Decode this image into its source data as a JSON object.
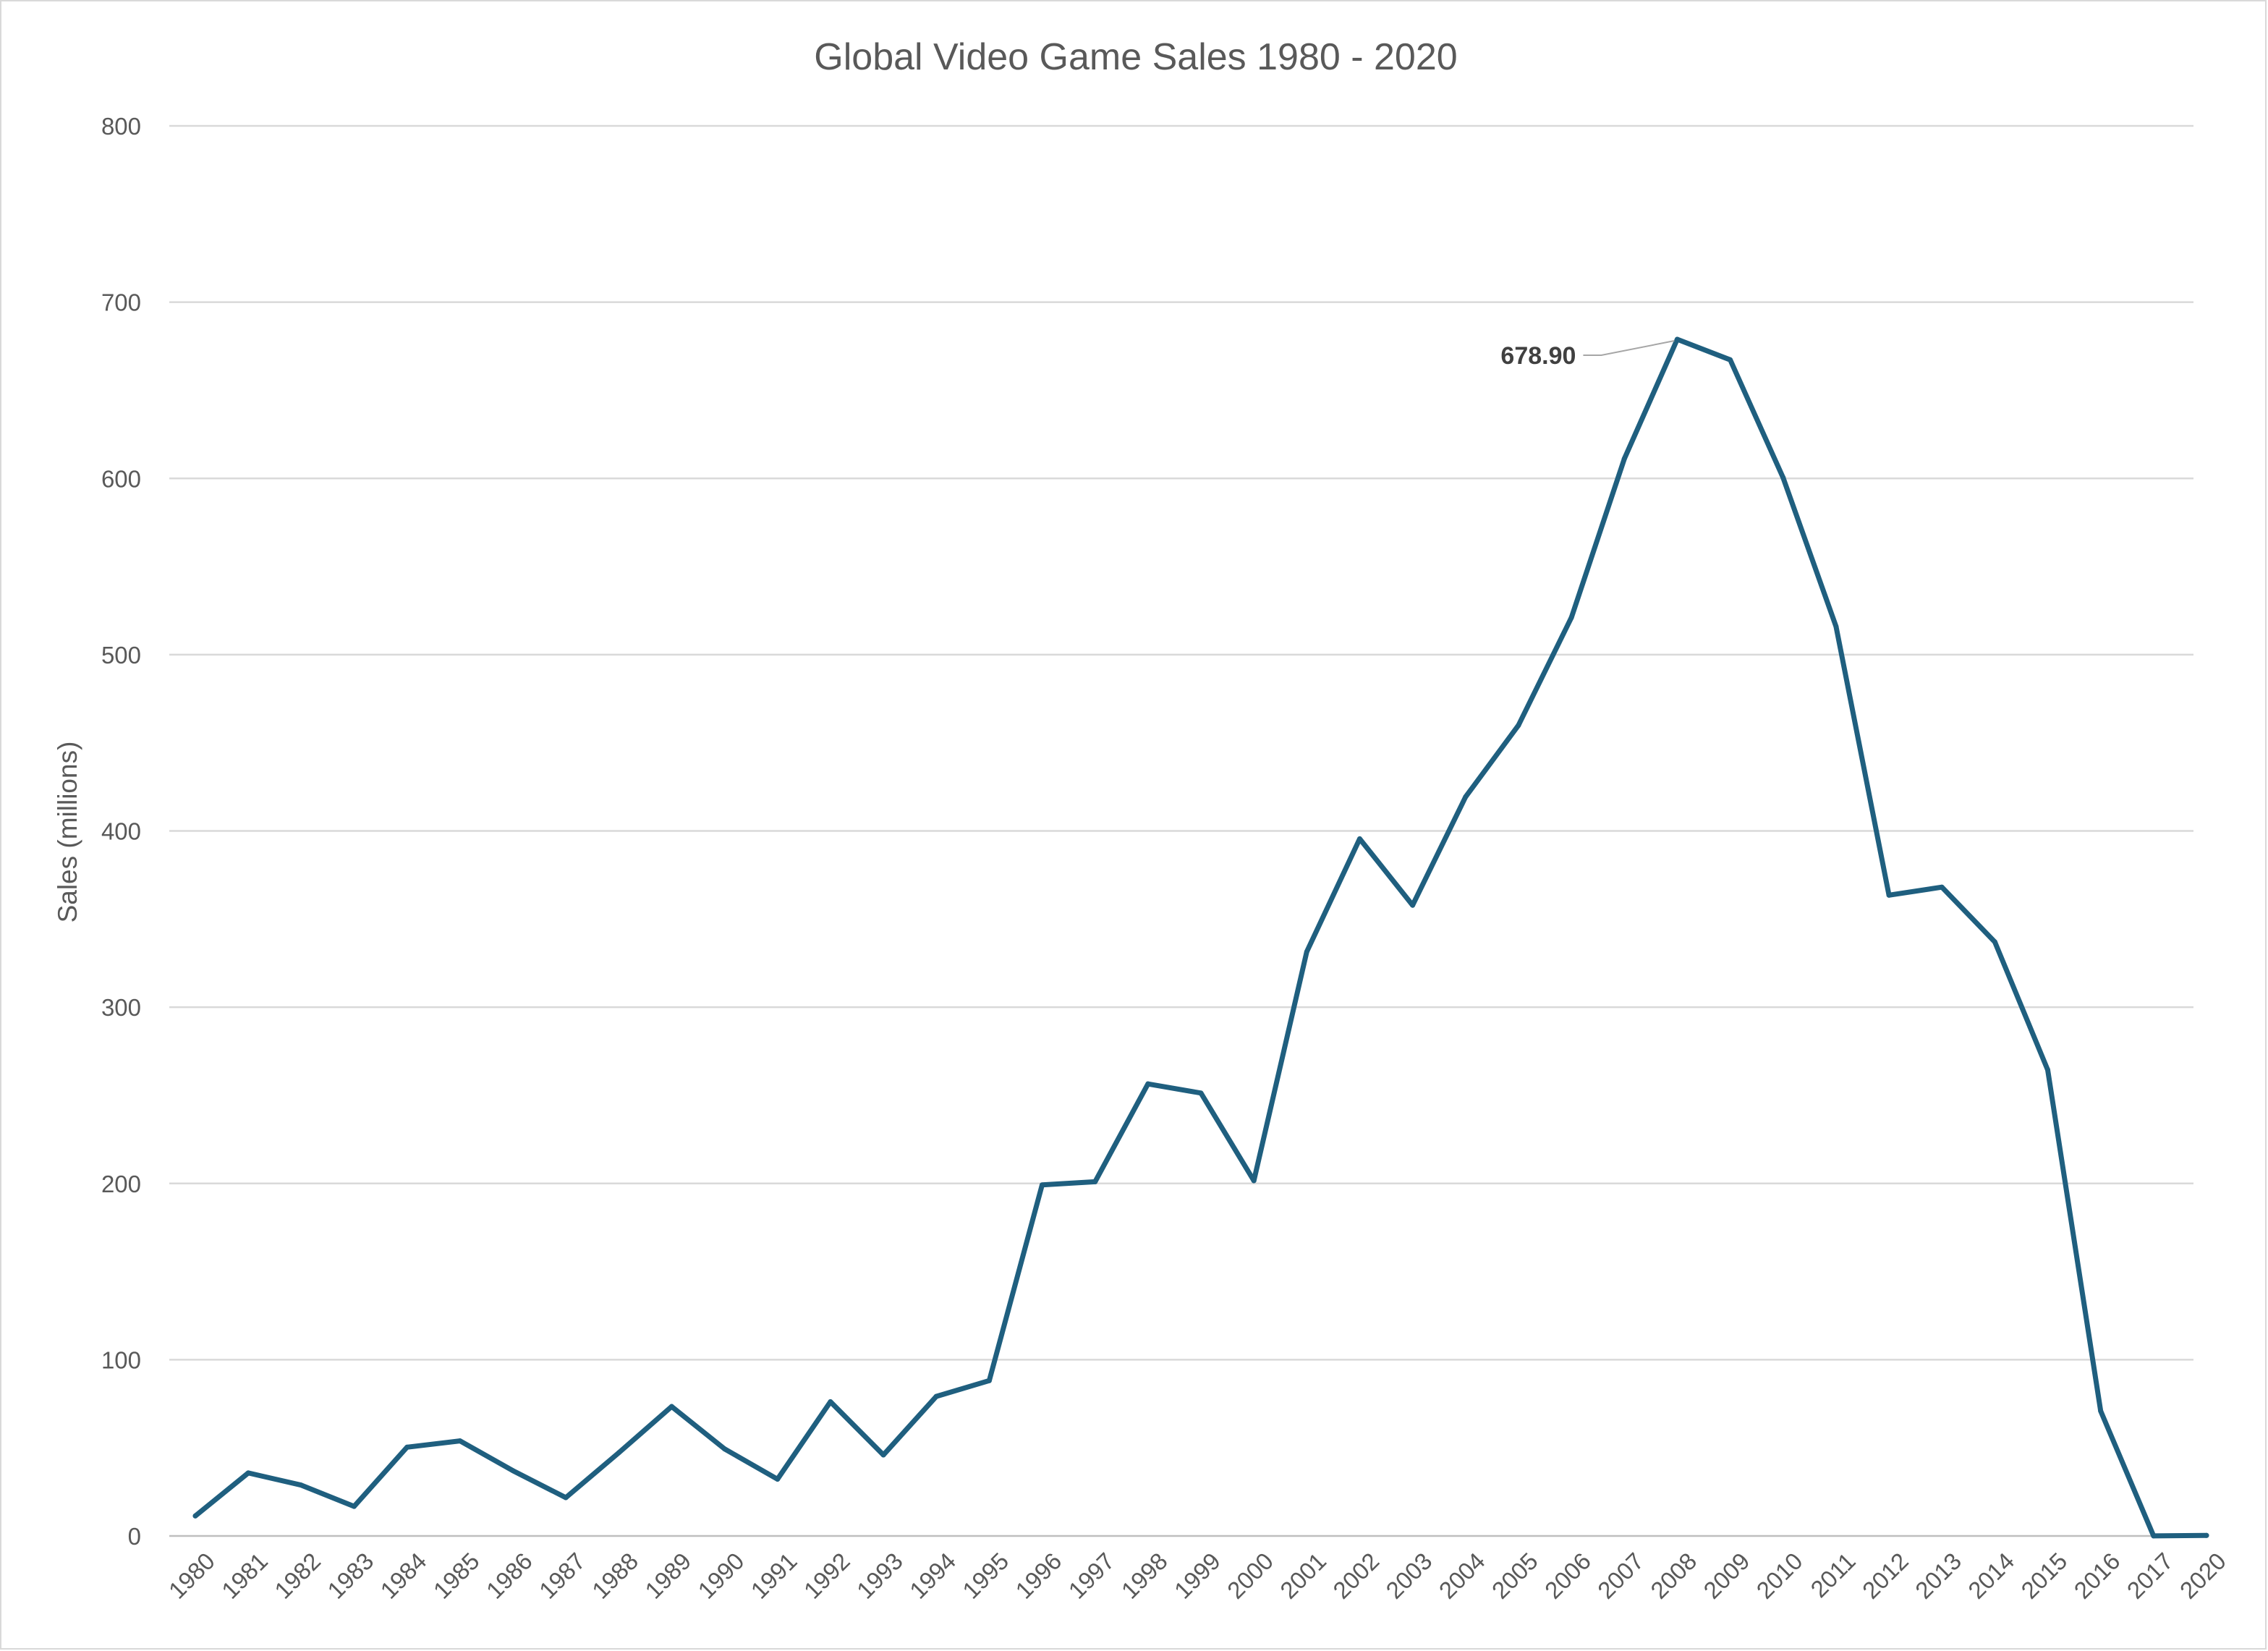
{
  "chart_data": {
    "type": "line",
    "title": "Global Video Game Sales 1980 - 2020",
    "xlabel": "",
    "ylabel": "Sales (millions)",
    "ylim": [
      0,
      800
    ],
    "yticks": [
      0,
      100,
      200,
      300,
      400,
      500,
      600,
      700,
      800
    ],
    "grid": "horizontal",
    "legend": "none",
    "line_color": "#1f5f7f",
    "categories": [
      "1980",
      "1981",
      "1982",
      "1983",
      "1984",
      "1985",
      "1986",
      "1987",
      "1988",
      "1989",
      "1990",
      "1991",
      "1992",
      "1993",
      "1994",
      "1995",
      "1996",
      "1997",
      "1998",
      "1999",
      "2000",
      "2001",
      "2002",
      "2003",
      "2004",
      "2005",
      "2006",
      "2007",
      "2008",
      "2009",
      "2010",
      "2011",
      "2012",
      "2013",
      "2014",
      "2015",
      "2016",
      "2017",
      "2020"
    ],
    "series": [
      {
        "values": [
          11.38,
          35.77,
          28.86,
          16.79,
          50.36,
          53.94,
          37.07,
          21.74,
          47.22,
          73.45,
          49.39,
          32.23,
          76.16,
          45.98,
          79.17,
          88.11,
          199.15,
          200.98,
          256.47,
          251.27,
          201.56,
          331.47,
          395.52,
          357.85,
          419.31,
          459.94,
          521.04,
          611.13,
          678.9,
          667.3,
          600.45,
          515.99,
          363.54,
          368.11,
          337.05,
          264.44,
          70.93,
          0.05,
          0.29
        ]
      }
    ],
    "annotations": [
      {
        "category": "2008",
        "value": 678.9,
        "text": "678.90"
      }
    ]
  }
}
